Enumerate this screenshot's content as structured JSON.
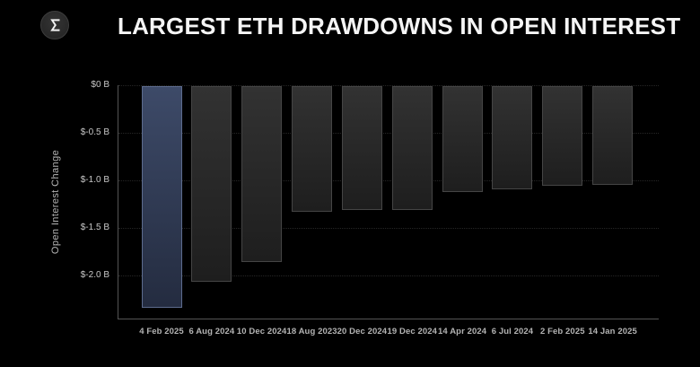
{
  "header": {
    "title": "LARGEST ETH DRAWDOWNS IN OPEN INTEREST",
    "logo_icon": "sigma-icon"
  },
  "colors": {
    "background": "#000000",
    "title_text": "#f5f5f5",
    "axis_line": "#555555",
    "gridline": "#262626",
    "tick_label": "#c8c8c8",
    "axis_title": "#b4b4b4",
    "x_label": "#b3b3b3",
    "bar_top": "#323232",
    "bar_bottom": "#1e1e1e",
    "bar_border": "#454545",
    "highlight_top": "#3d4a68",
    "highlight_bottom": "#242c40",
    "highlight_border": "#5d6c8e"
  },
  "chart_data": {
    "type": "bar",
    "title": "LARGEST ETH DRAWDOWNS IN OPEN INTEREST",
    "xlabel": "",
    "ylabel": "Open Interest Change",
    "unit": "billion USD",
    "categories": [
      "4 Feb 2025",
      "6 Aug 2024",
      "10 Dec 2024",
      "18 Aug 2023",
      "20 Dec 2024",
      "19 Dec 2024",
      "14 Apr 2024",
      "6 Jul 2024",
      "2 Feb 2025",
      "14 Jan 2025"
    ],
    "values": [
      -2.34,
      -2.07,
      -1.86,
      -1.33,
      -1.31,
      -1.31,
      -1.12,
      -1.09,
      -1.06,
      -1.05
    ],
    "highlight_index": 0,
    "ylim": [
      -2.46,
      0
    ],
    "yticks": [
      {
        "label": "$0 B",
        "value": 0
      },
      {
        "label": "$-0.5 B",
        "value": -0.5
      },
      {
        "label": "$-1.0 B",
        "value": -1.0
      },
      {
        "label": "$-1.5 B",
        "value": -1.5
      },
      {
        "label": "$-2.0 B",
        "value": -2.0
      }
    ],
    "grid": true,
    "legend": null
  }
}
